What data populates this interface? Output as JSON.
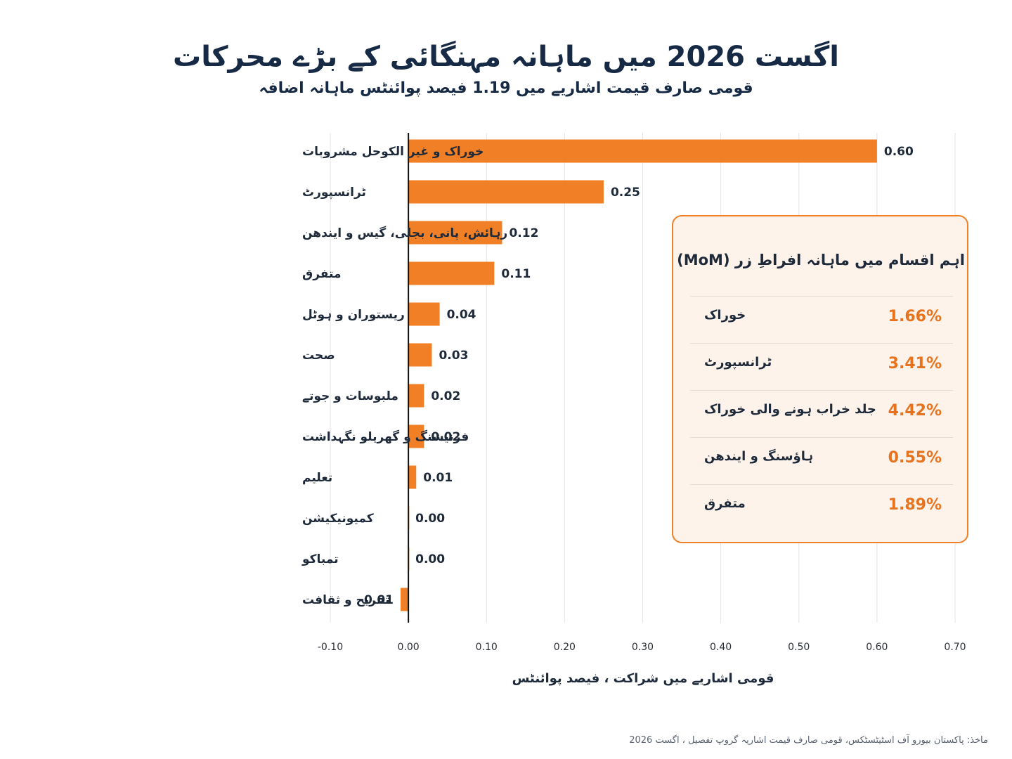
{
  "header": {
    "title": "اگست 2026 میں ماہانہ مہنگائی کے بڑے محرکات",
    "subtitle": "قومی صارف قیمت اشاریے میں 1.19 فیصد پوائنٹس ماہانہ اضافہ"
  },
  "colors": {
    "bar": "#f07f26",
    "panel_bg": "#fdf3ea",
    "panel_border": "#f07f26",
    "value_text": "#e8731e",
    "title_text": "#172a45"
  },
  "chart_data": {
    "type": "bar",
    "orientation": "horizontal",
    "categories": [
      "خوراک و غیر الکوحل مشروبات",
      "ٹرانسپورٹ",
      "رہائش، پانی، بجلی، گیس و ایندھن",
      "متفرق",
      "ریستوران و ہوٹل",
      "صحت",
      "ملبوسات و جوتے",
      "فرنیشنگ و گھریلو نگہداشت",
      "تعلیم",
      "کمیونیکیشن",
      "تمباکو",
      "تفریح و ثقافت"
    ],
    "values": [
      0.6,
      0.25,
      0.12,
      0.11,
      0.04,
      0.03,
      0.02,
      0.02,
      0.01,
      0.0,
      0.0,
      -0.01
    ],
    "value_labels": [
      "0.60",
      "0.25",
      "0.12",
      "0.11",
      "0.04",
      "0.03",
      "0.02",
      "0.02",
      "0.01",
      "0.00",
      "0.00",
      "-0.01"
    ],
    "xlim": [
      -0.1,
      0.7
    ],
    "xticks": [
      "-0.10",
      "0.00",
      "0.10",
      "0.20",
      "0.30",
      "0.40",
      "0.50",
      "0.60",
      "0.70"
    ],
    "xlabel": "قومی اشاریے میں شراکت ، فیصد پوائنٹس",
    "grid": "vertical"
  },
  "panel": {
    "title": "اہم اقسام میں ماہانہ افراطِ زر (MoM)",
    "rows": [
      {
        "label": "خوراک",
        "value": "1.66%"
      },
      {
        "label": "ٹرانسپورٹ",
        "value": "3.41%"
      },
      {
        "label": "جلد خراب ہونے والی خوراک",
        "value": "4.42%"
      },
      {
        "label": "ہاؤسنگ و ایندھن",
        "value": "0.55%"
      },
      {
        "label": "متفرق",
        "value": "1.89%"
      }
    ]
  },
  "footer": {
    "source": "ماخذ: پاکستان بیورو آف اسٹیٹسٹکس، قومی صارف قیمت اشاریہ گروپ تفصیل ، اگست 2026"
  }
}
